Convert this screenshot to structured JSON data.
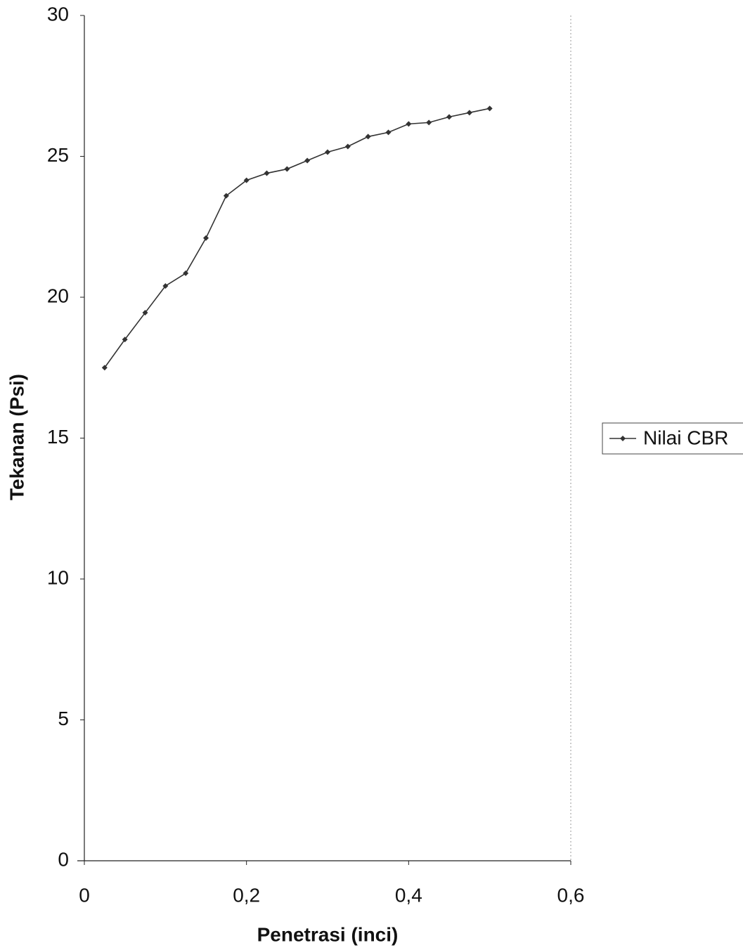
{
  "chart_data": {
    "type": "line",
    "x": [
      0.025,
      0.05,
      0.075,
      0.1,
      0.125,
      0.15,
      0.175,
      0.2,
      0.225,
      0.25,
      0.275,
      0.3,
      0.325,
      0.35,
      0.375,
      0.4,
      0.425,
      0.45,
      0.475,
      0.5
    ],
    "series": [
      {
        "name": "Nilai CBR",
        "color": "#333333",
        "values": [
          17.5,
          18.5,
          19.45,
          20.4,
          20.85,
          22.1,
          23.6,
          24.15,
          24.4,
          24.55,
          24.85,
          25.15,
          25.35,
          25.7,
          25.85,
          26.15,
          26.2,
          26.4,
          26.55,
          26.7
        ]
      }
    ],
    "x_label": "Penetrasi (inci)",
    "y_label": "Tekanan (Psi)",
    "xlim": [
      0,
      0.6
    ],
    "xticks": [
      0,
      {
        "value": 0.2,
        "label": "0,2"
      },
      {
        "value": 0.4,
        "label": "0,4"
      },
      {
        "value": 0.6,
        "label": "0,6"
      }
    ],
    "ylim": [
      0,
      30
    ],
    "yticks": [
      0,
      5,
      10,
      15,
      20,
      25,
      30
    ],
    "legend": "right"
  }
}
